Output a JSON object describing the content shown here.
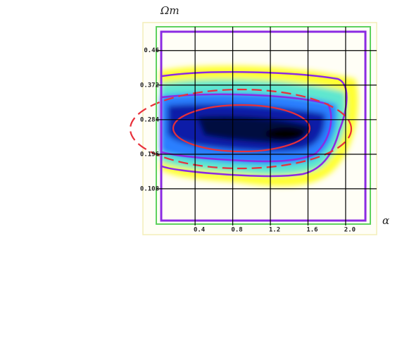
{
  "chart_data": {
    "type": "contour",
    "xlabel": "α",
    "ylabel": "Ωm",
    "xlim": [
      0.04,
      2.21
    ],
    "ylim": [
      0.027,
      0.508
    ],
    "xticks": [
      0.4,
      0.8,
      1.2,
      1.6,
      {
        "value": 2,
        "label": "2.0"
      }
    ],
    "yticks": [
      0.108,
      0.196,
      0.284,
      0.372,
      0.46
    ],
    "grid": true
  }
}
